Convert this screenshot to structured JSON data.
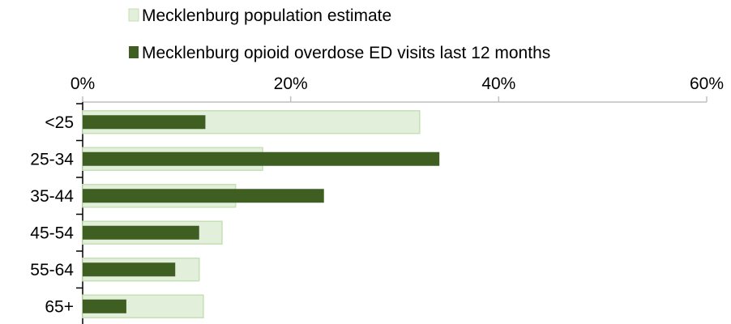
{
  "chart_data": {
    "type": "bar",
    "orientation": "horizontal",
    "categories": [
      "<25",
      "25-34",
      "35-44",
      "45-54",
      "55-64",
      "65+"
    ],
    "series": [
      {
        "name": "Mecklenburg population estimate",
        "color": "#e2efda",
        "border": "#c5e0b4",
        "values": [
          32.4,
          17.3,
          14.7,
          13.4,
          11.2,
          11.6
        ]
      },
      {
        "name": "Mecklenburg opioid overdose ED visits last 12 months",
        "color": "#3f5f22",
        "values": [
          11.8,
          34.3,
          23.2,
          11.2,
          8.9,
          4.2
        ]
      }
    ],
    "x_axis": {
      "position": "top",
      "min": 0,
      "max": 60,
      "ticks": [
        0,
        20,
        40,
        60
      ],
      "tick_labels": [
        "0%",
        "20%",
        "40%",
        "60%"
      ]
    },
    "grid": false,
    "legend": {
      "placement": "top",
      "entries": [
        "Mecklenburg population estimate",
        "Mecklenburg opioid overdose ED visits last 12 months"
      ]
    },
    "title": "",
    "xlabel": "",
    "ylabel": ""
  }
}
